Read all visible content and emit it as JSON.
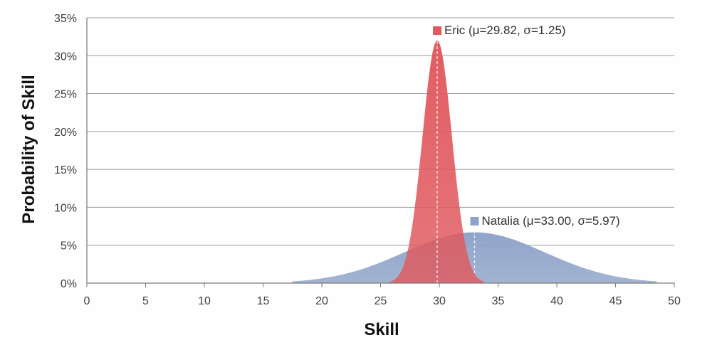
{
  "chart_data": {
    "type": "area",
    "xlabel": "Skill",
    "ylabel": "Probability of Skill",
    "xlim": [
      0,
      50
    ],
    "ylim": [
      0,
      35
    ],
    "x_ticks": [
      "0",
      "5",
      "10",
      "15",
      "20",
      "25",
      "30",
      "35",
      "40",
      "45",
      "50"
    ],
    "y_ticks": [
      "0%",
      "5%",
      "10%",
      "15%",
      "20%",
      "25%",
      "30%",
      "35%"
    ],
    "grid": "horizontal",
    "series": [
      {
        "name": "Natalia",
        "label": "Natalia (μ=33.00, σ=5.97)",
        "distribution": "normal",
        "mu": 33.0,
        "sigma": 5.97,
        "x_range": [
          17.5,
          48.5
        ],
        "peak_percent": 6.7,
        "color": "#8ea3c9"
      },
      {
        "name": "Eric",
        "label": "Eric (μ=29.82, σ=1.25)",
        "distribution": "normal",
        "mu": 29.82,
        "sigma": 1.25,
        "x_range": [
          25.8,
          33.8
        ],
        "peak_percent": 32.0,
        "color": "#e05a5f"
      }
    ]
  }
}
